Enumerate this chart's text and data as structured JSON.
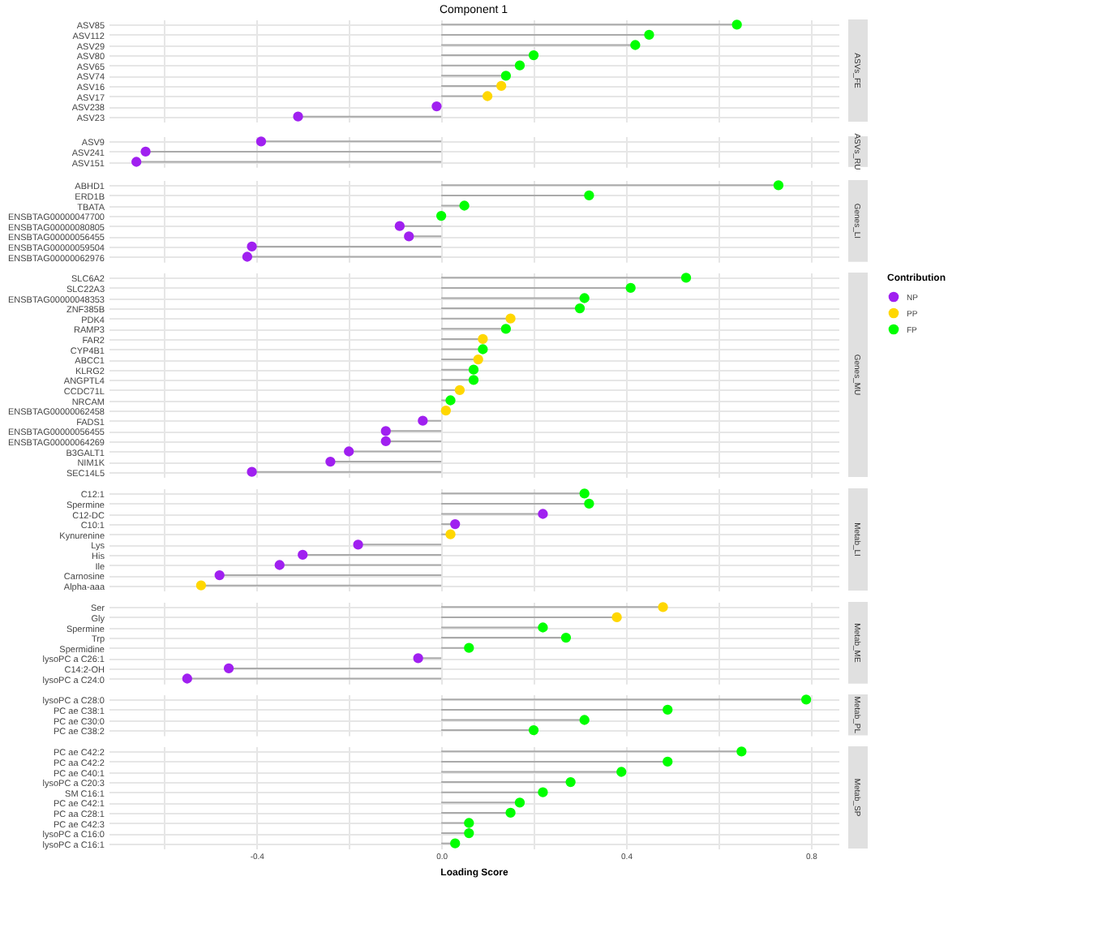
{
  "chart_data": [
    {
      "type": "lollipop",
      "orientation": "horizontal",
      "title": "Component 1",
      "ylabel": "ASVs_FE",
      "categories": [
        "ASV85",
        "ASV112",
        "ASV29",
        "ASV80",
        "ASV65",
        "ASV74",
        "ASV16",
        "ASV17",
        "ASV238",
        "ASV23"
      ],
      "series": [
        {
          "color": "#a020f0",
          "values": [
            null,
            null,
            null,
            null,
            null,
            null,
            null,
            null,
            -0.01,
            -0.31
          ]
        },
        {
          "color": "#ffd700",
          "values": [
            null,
            null,
            null,
            null,
            null,
            null,
            0.13,
            0.1,
            null,
            null
          ]
        },
        {
          "color": "#00ff00",
          "values": [
            0.64,
            0.45,
            0.42,
            0.2,
            0.17,
            0.14,
            null,
            null,
            null,
            null
          ]
        }
      ],
      "xlim": [
        -0.72,
        0.86
      ],
      "xticks": [
        -0.6,
        -0.4,
        -0.2,
        0,
        0.2,
        0.4,
        0.6,
        0.8
      ],
      "grid": true,
      "tick_labels": "y",
      "marker": "circle"
    },
    {
      "type": "lollipop",
      "orientation": "horizontal",
      "ylabel": "ASVs_RU",
      "categories": [
        "ASV9",
        "ASV241",
        "ASV151"
      ],
      "series": [
        {
          "color": "#a020f0",
          "values": [
            -0.39,
            -0.64,
            -0.66
          ]
        }
      ],
      "xlim": [
        -0.72,
        0.86
      ],
      "xticks": [
        -0.6,
        -0.4,
        -0.2,
        0,
        0.2,
        0.4,
        0.6,
        0.8
      ],
      "grid": true,
      "tick_labels": "y",
      "marker": "circle"
    },
    {
      "type": "lollipop",
      "orientation": "horizontal",
      "ylabel": "Genes_LI",
      "categories": [
        "ABHD1",
        "ERD1B",
        "TBATA",
        "ENSBTAG00000047700",
        "ENSBTAG00000080805",
        "ENSBTAG00000056455",
        "ENSBTAG00000059504",
        "ENSBTAG00000062976"
      ],
      "series": [
        {
          "color": "#a020f0",
          "values": [
            null,
            null,
            null,
            null,
            -0.09,
            -0.07,
            -0.41,
            -0.42
          ]
        },
        {
          "color": "#00ff00",
          "values": [
            0.73,
            0.32,
            0.05,
            0.0,
            null,
            null,
            null,
            null
          ]
        }
      ],
      "xlim": [
        -0.72,
        0.86
      ],
      "xticks": [
        -0.6,
        -0.4,
        -0.2,
        0,
        0.2,
        0.4,
        0.6,
        0.8
      ],
      "grid": true,
      "tick_labels": "y",
      "marker": "circle"
    },
    {
      "type": "lollipop",
      "orientation": "horizontal",
      "ylabel": "Genes_MU",
      "legend_title": "Contribution",
      "legend": "right",
      "categories": [
        "SLC6A2",
        "SLC22A3",
        "ENSBTAG00000048353",
        "ZNF385B",
        "PDK4",
        "RAMP3",
        "FAR2",
        "CYP4B1",
        "ABCC1",
        "KLRG2",
        "ANGPTL4",
        "CCDC71L",
        "NRCAM",
        "ENSBTAG00000062458",
        "FADS1",
        "ENSBTAG00000056455",
        "ENSBTAG00000064269",
        "B3GALT1",
        "NIM1K",
        "SEC14L5"
      ],
      "series": [
        {
          "name": "NP",
          "color": "#a020f0",
          "values": [
            null,
            null,
            null,
            null,
            null,
            null,
            null,
            null,
            null,
            null,
            null,
            null,
            null,
            null,
            -0.04,
            -0.12,
            -0.12,
            -0.2,
            -0.24,
            -0.41
          ]
        },
        {
          "name": "PP",
          "color": "#ffd700",
          "values": [
            null,
            null,
            null,
            null,
            0.15,
            null,
            0.09,
            null,
            0.08,
            null,
            null,
            0.04,
            null,
            0.01,
            null,
            null,
            null,
            null,
            null,
            null
          ]
        },
        {
          "name": "FP",
          "color": "#00ff00",
          "values": [
            0.53,
            0.41,
            0.31,
            0.3,
            null,
            0.14,
            null,
            0.09,
            null,
            0.07,
            0.07,
            null,
            0.02,
            null,
            null,
            null,
            null,
            null,
            null,
            null
          ]
        }
      ],
      "xlim": [
        -0.72,
        0.86
      ],
      "xticks": [
        -0.6,
        -0.4,
        -0.2,
        0,
        0.2,
        0.4,
        0.6,
        0.8
      ],
      "grid": true,
      "tick_labels": "y",
      "marker": "circle"
    },
    {
      "type": "lollipop",
      "orientation": "horizontal",
      "ylabel": "Metab_LI",
      "categories": [
        "C12:1",
        "Spermine",
        "C12-DC",
        "C10:1",
        "Kynurenine",
        "Lys",
        "His",
        "Ile",
        "Carnosine",
        "Alpha-aaa"
      ],
      "series": [
        {
          "color": "#a020f0",
          "values": [
            null,
            null,
            0.22,
            0.03,
            null,
            -0.18,
            -0.3,
            -0.35,
            -0.48,
            null
          ]
        },
        {
          "color": "#ffd700",
          "values": [
            null,
            null,
            null,
            null,
            0.02,
            null,
            null,
            null,
            null,
            -0.52
          ]
        },
        {
          "color": "#00ff00",
          "values": [
            0.31,
            0.32,
            null,
            null,
            null,
            null,
            null,
            null,
            null,
            null
          ]
        }
      ],
      "xlim": [
        -0.72,
        0.86
      ],
      "xticks": [
        -0.6,
        -0.4,
        -0.2,
        0,
        0.2,
        0.4,
        0.6,
        0.8
      ],
      "grid": true,
      "tick_labels": "y",
      "marker": "circle"
    },
    {
      "type": "lollipop",
      "orientation": "horizontal",
      "ylabel": "Metab_ME",
      "categories": [
        "Ser",
        "Gly",
        "Spermine",
        "Trp",
        "Spermidine",
        "lysoPC a C26:1",
        "C14:2-OH",
        "lysoPC a C24:0"
      ],
      "series": [
        {
          "color": "#a020f0",
          "values": [
            null,
            null,
            null,
            null,
            null,
            -0.05,
            -0.46,
            -0.55
          ]
        },
        {
          "color": "#ffd700",
          "values": [
            0.48,
            0.38,
            null,
            null,
            null,
            null,
            null,
            null
          ]
        },
        {
          "color": "#00ff00",
          "values": [
            null,
            null,
            0.22,
            0.27,
            0.06,
            null,
            null,
            null
          ]
        }
      ],
      "xlim": [
        -0.72,
        0.86
      ],
      "xticks": [
        -0.6,
        -0.4,
        -0.2,
        0,
        0.2,
        0.4,
        0.6,
        0.8
      ],
      "grid": true,
      "tick_labels": "y",
      "marker": "circle"
    },
    {
      "type": "lollipop",
      "orientation": "horizontal",
      "ylabel": "Metab_PL",
      "categories": [
        "lysoPC a C28:0",
        "PC ae C38:1",
        "PC ae C30:0",
        "PC ae C38:2"
      ],
      "series": [
        {
          "color": "#00ff00",
          "values": [
            0.79,
            0.49,
            0.31,
            0.2
          ]
        }
      ],
      "xlim": [
        -0.72,
        0.86
      ],
      "xticks": [
        -0.6,
        -0.4,
        -0.2,
        0,
        0.2,
        0.4,
        0.6,
        0.8
      ],
      "grid": true,
      "tick_labels": "y",
      "marker": "circle"
    },
    {
      "type": "lollipop",
      "orientation": "horizontal",
      "ylabel": "Metab_SP",
      "xlabel": "Loading Score",
      "categories": [
        "PC ae C42:2",
        "PC aa C42:2",
        "PC ae C40:1",
        "lysoPC a C20:3",
        "SM C16:1",
        "PC ae C42:1",
        "PC aa C28:1",
        "PC ae C42:3",
        "lysoPC a C16:0",
        "lysoPC a C16:1"
      ],
      "series": [
        {
          "color": "#00ff00",
          "values": [
            0.65,
            0.49,
            0.39,
            0.28,
            0.22,
            0.17,
            0.15,
            0.06,
            0.06,
            0.03
          ]
        }
      ],
      "xlim": [
        -0.72,
        0.86
      ],
      "xticks": [
        {
          "value": -0.6,
          "label": null
        },
        -0.4,
        {
          "value": -0.2,
          "label": null
        },
        {
          "value": 0,
          "label": "0.0"
        },
        {
          "value": 0.2,
          "label": null
        },
        0.4,
        {
          "value": 0.6,
          "label": null
        },
        0.8
      ],
      "grid": true,
      "marker": "circle"
    }
  ]
}
